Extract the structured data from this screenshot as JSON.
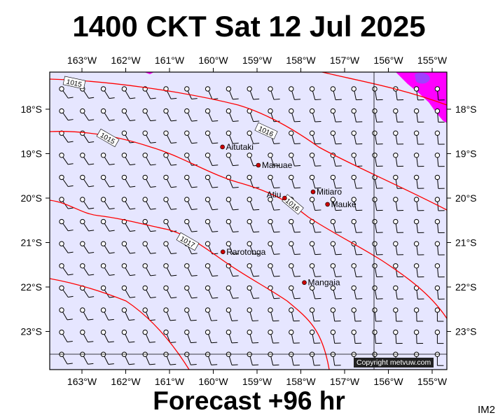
{
  "title": "1400 CKT Sat 12 Jul 2025",
  "subtitle": "Forecast +96 hr",
  "corner_code": "IM2",
  "copyright": "Copyright metvuw.com",
  "lon_labels": [
    "163°W",
    "162°W",
    "161°W",
    "160°W",
    "159°W",
    "158°W",
    "157°W",
    "156°W",
    "155°W"
  ],
  "lat_labels": [
    "18°S",
    "19°S",
    "20°S",
    "21°S",
    "22°S",
    "23°S"
  ],
  "places": [
    {
      "name": "Aitutaki",
      "lon": -159.79,
      "lat": -18.85
    },
    {
      "name": "Manuae",
      "lon": -158.97,
      "lat": -19.26
    },
    {
      "name": "Mitiaro",
      "lon": -157.72,
      "lat": -19.86
    },
    {
      "name": "Atiu",
      "lon": -158.37,
      "lat": -20.0
    },
    {
      "name": "Mauke",
      "lon": -157.39,
      "lat": -20.14
    },
    {
      "name": "Rarotonga",
      "lon": -159.78,
      "lat": -21.21
    },
    {
      "name": "Mangaia",
      "lon": -157.92,
      "lat": -21.9
    }
  ],
  "isobar_labels": [
    "1015",
    "1015",
    "1016",
    "1016",
    "1017"
  ],
  "colors": {
    "ocean": "#e6e6ff",
    "isobar": "#ff0000",
    "rain": "#ff00ff",
    "rain_heavy": "#9a3dff",
    "town": "#cc0000"
  }
}
